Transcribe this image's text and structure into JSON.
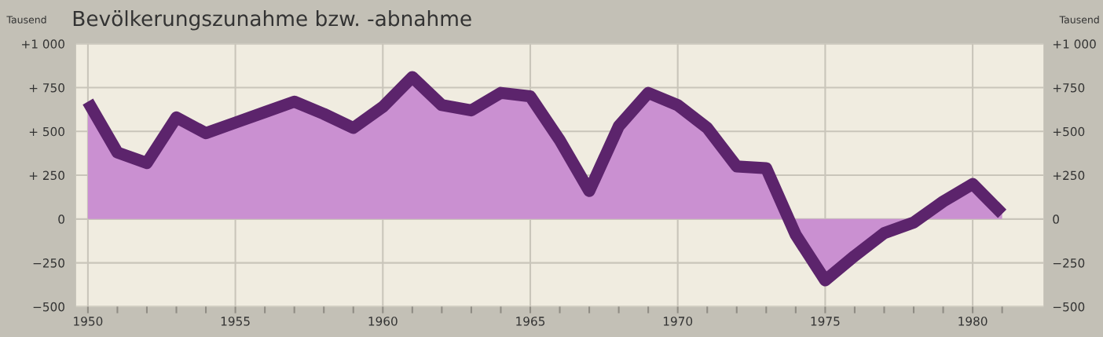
{
  "chart_data": {
    "type": "area",
    "title": "Bevölkerungszunahme bzw. -abnahme",
    "ylabel": "Tausend",
    "y2label": "Tausend",
    "x": [
      1950,
      1951,
      1952,
      1953,
      1954,
      1955,
      1956,
      1957,
      1958,
      1959,
      1960,
      1961,
      1962,
      1963,
      1964,
      1965,
      1966,
      1967,
      1968,
      1969,
      1970,
      1971,
      1972,
      1973,
      1974,
      1975,
      1976,
      1977,
      1978,
      1979,
      1980,
      1981
    ],
    "series": [
      {
        "color": "#5c246c",
        "values": [
          670,
          380,
          320,
          580,
          490,
          550,
          610,
          670,
          600,
          520,
          640,
          810,
          650,
          620,
          720,
          700,
          450,
          160,
          530,
          720,
          650,
          520,
          300,
          290,
          -90,
          -350,
          -210,
          -80,
          -20,
          100,
          200,
          30
        ]
      }
    ],
    "xlim": [
      1949.6,
      1982.4
    ],
    "xticks": [
      1950,
      {
        "value": 1951,
        "label": null
      },
      {
        "value": 1952,
        "label": null
      },
      {
        "value": 1953,
        "label": null
      },
      {
        "value": 1954,
        "label": null
      },
      1955,
      {
        "value": 1956,
        "label": null
      },
      {
        "value": 1957,
        "label": null
      },
      {
        "value": 1958,
        "label": null
      },
      {
        "value": 1959,
        "label": null
      },
      1960,
      {
        "value": 1961,
        "label": null
      },
      {
        "value": 1962,
        "label": null
      },
      {
        "value": 1963,
        "label": null
      },
      {
        "value": 1964,
        "label": null
      },
      1965,
      {
        "value": 1966,
        "label": null
      },
      {
        "value": 1967,
        "label": null
      },
      {
        "value": 1968,
        "label": null
      },
      {
        "value": 1969,
        "label": null
      },
      1970,
      {
        "value": 1971,
        "label": null
      },
      {
        "value": 1972,
        "label": null
      },
      {
        "value": 1973,
        "label": null
      },
      {
        "value": 1974,
        "label": null
      },
      1975,
      {
        "value": 1976,
        "label": null
      },
      {
        "value": 1977,
        "label": null
      },
      {
        "value": 1978,
        "label": null
      },
      {
        "value": 1979,
        "label": null
      },
      1980,
      {
        "value": 1981,
        "label": null
      }
    ],
    "ylim": [
      -500,
      1000
    ],
    "yticks": [
      {
        "value": -500,
        "label": "−500"
      },
      {
        "value": -250,
        "label": "−250"
      },
      0,
      {
        "value": 250,
        "label": "+ 250"
      },
      {
        "value": 500,
        "label": "+ 500"
      },
      {
        "value": 750,
        "label": "+ 750"
      },
      {
        "value": 1000,
        "label": "+1 000"
      }
    ],
    "y2lim": [
      -500,
      1000
    ],
    "y2ticks": [
      {
        "value": -500,
        "label": "−500"
      },
      {
        "value": -250,
        "label": "−250"
      },
      0,
      {
        "value": 250,
        "label": "+250"
      },
      {
        "value": 500,
        "label": "+500"
      },
      {
        "value": 750,
        "label": "+750"
      },
      {
        "value": 1000,
        "label": "+1 000"
      }
    ],
    "grid": true,
    "legend": false,
    "marker": "none",
    "line_style": "solid"
  }
}
